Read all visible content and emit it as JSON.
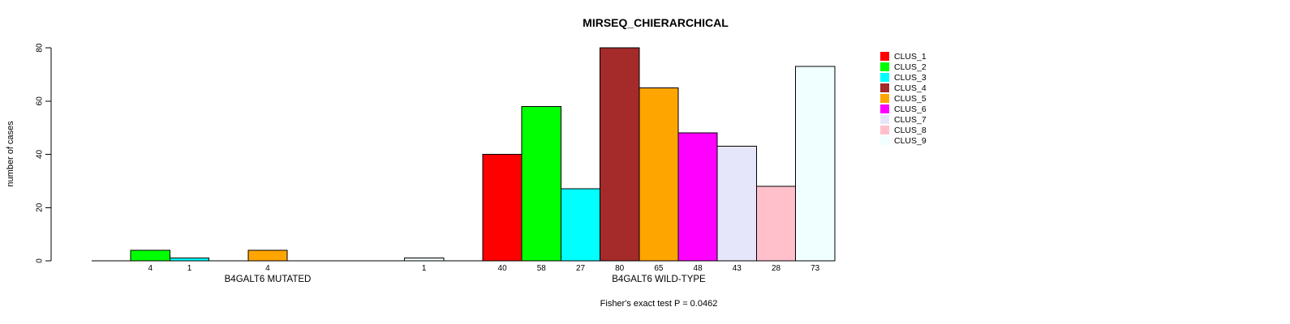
{
  "figure": {
    "background_color": "#ffffff",
    "axis_color": "#000000",
    "bar_border_color": "#000000"
  },
  "chart_data": {
    "type": "bar",
    "title": "MIRSEQ_CHIERARCHICAL",
    "xlabel": "",
    "ylabel": "number of cases",
    "ylim": [
      0,
      80
    ],
    "yticks": [
      0,
      20,
      40,
      60,
      80
    ],
    "grid": false,
    "legend_position": "right",
    "annotation": "Fisher's exact test P = 0.0462",
    "bar_value_label_rule": "value printed under each nonzero bar",
    "categories": [
      "B4GALT6 MUTATED",
      "B4GALT6 WILD-TYPE"
    ],
    "series": [
      {
        "name": "CLUS_1",
        "color": "#FF0000",
        "values": [
          0,
          40
        ]
      },
      {
        "name": "CLUS_2",
        "color": "#00FF00",
        "values": [
          4,
          58
        ]
      },
      {
        "name": "CLUS_3",
        "color": "#00FFFF",
        "values": [
          1,
          27
        ]
      },
      {
        "name": "CLUS_4",
        "color": "#A52A2A",
        "values": [
          0,
          80
        ]
      },
      {
        "name": "CLUS_5",
        "color": "#FFA500",
        "values": [
          4,
          65
        ]
      },
      {
        "name": "CLUS_6",
        "color": "#FF00FF",
        "values": [
          0,
          48
        ]
      },
      {
        "name": "CLUS_7",
        "color": "#E6E6FA",
        "values": [
          0,
          43
        ]
      },
      {
        "name": "CLUS_8",
        "color": "#FFC0CB",
        "values": [
          0,
          28
        ]
      },
      {
        "name": "CLUS_9",
        "color": "#F0FFFF",
        "values": [
          1,
          73
        ]
      }
    ]
  }
}
